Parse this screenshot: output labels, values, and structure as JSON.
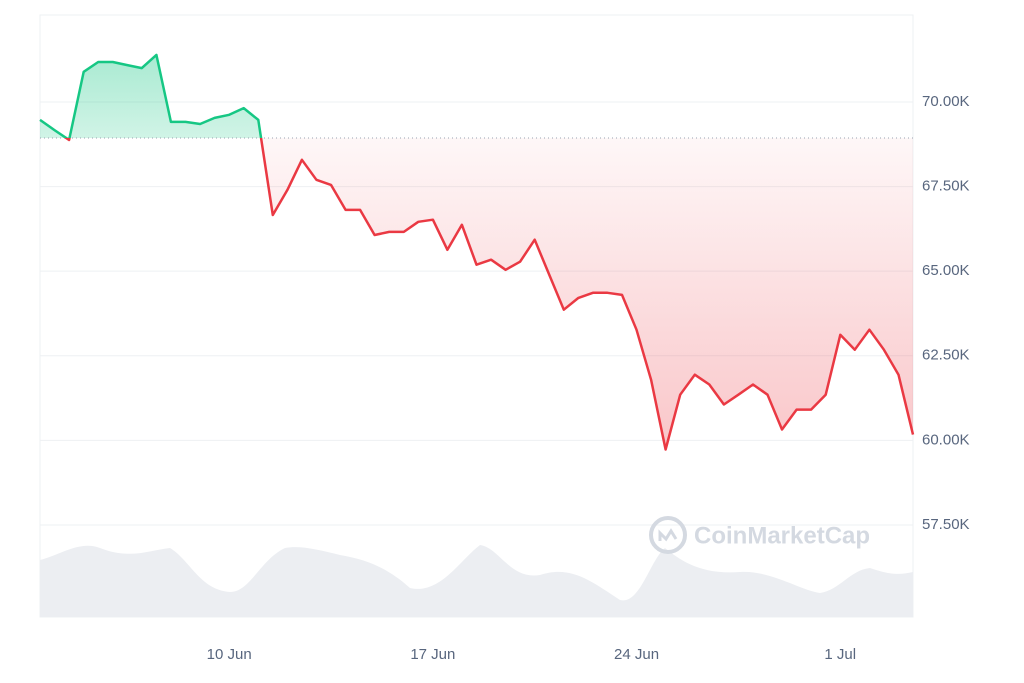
{
  "chart_data": {
    "type": "line",
    "watermark": "CoinMarketCap",
    "categories": [
      null,
      null,
      null,
      null,
      null,
      null,
      null,
      null,
      null,
      null,
      null,
      null,
      null,
      "10 Jun",
      null,
      null,
      null,
      null,
      null,
      null,
      null,
      null,
      null,
      null,
      null,
      null,
      null,
      "17 Jun",
      null,
      null,
      null,
      null,
      null,
      null,
      null,
      null,
      null,
      null,
      null,
      null,
      null,
      "24 Jun",
      null,
      null,
      null,
      null,
      null,
      null,
      null,
      null,
      null,
      null,
      null,
      null,
      null,
      "1 Jul",
      null,
      null,
      null,
      null,
      null
    ],
    "values": [
      69470,
      69170,
      68880,
      70890,
      71180,
      71180,
      71090,
      71000,
      71390,
      69410,
      69410,
      69350,
      69530,
      69620,
      69820,
      69470,
      66660,
      67400,
      68290,
      67700,
      67550,
      66810,
      66810,
      66070,
      66160,
      66160,
      66460,
      66520,
      65630,
      66370,
      65190,
      65340,
      65040,
      65280,
      65930,
      64890,
      63860,
      64210,
      64360,
      64360,
      64300,
      63270,
      61790,
      59730,
      61350,
      61940,
      61650,
      61060,
      61350,
      61650,
      61350,
      60320,
      60910,
      60910,
      61350,
      63120,
      62680,
      63270,
      62680,
      61940,
      60170
    ],
    "baseline": 68937,
    "up_color": "#16c784",
    "down_color": "#ea3943",
    "ylim": [
      54780,
      72570
    ],
    "yticks": [
      {
        "value": 57500,
        "label": "57.50K"
      },
      {
        "value": 60000,
        "label": "60.00K"
      },
      {
        "value": 62500,
        "label": "62.50K"
      },
      {
        "value": 65000,
        "label": "65.00K"
      },
      {
        "value": 67500,
        "label": "67.50K"
      },
      {
        "value": 70000,
        "label": "70.00K"
      }
    ],
    "grid": true
  }
}
